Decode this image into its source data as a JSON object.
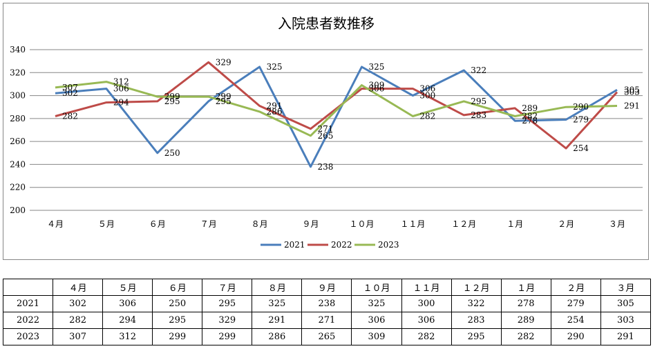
{
  "chart_data": {
    "type": "line",
    "title": "入院患者数推移",
    "categories": [
      "４月",
      "５月",
      "６月",
      "７月",
      "８月",
      "９月",
      "１０月",
      "１１月",
      "１２月",
      "１月",
      "２月",
      "３月"
    ],
    "series": [
      {
        "name": "2021",
        "color": "#4a7ebb",
        "values": [
          302,
          306,
          250,
          295,
          325,
          238,
          325,
          300,
          322,
          278,
          279,
          305
        ]
      },
      {
        "name": "2022",
        "color": "#be4b48",
        "values": [
          282,
          294,
          295,
          329,
          291,
          271,
          306,
          306,
          283,
          289,
          254,
          303
        ]
      },
      {
        "name": "2023",
        "color": "#98b954",
        "values": [
          307,
          312,
          299,
          299,
          286,
          265,
          309,
          282,
          295,
          282,
          290,
          291
        ]
      }
    ],
    "ylim": [
      200,
      340
    ],
    "yticks": [
      200,
      220,
      240,
      260,
      280,
      300,
      320,
      340
    ],
    "grid": true,
    "legend": "bottom",
    "data_labels": true
  },
  "table": {
    "corner": ""
  }
}
